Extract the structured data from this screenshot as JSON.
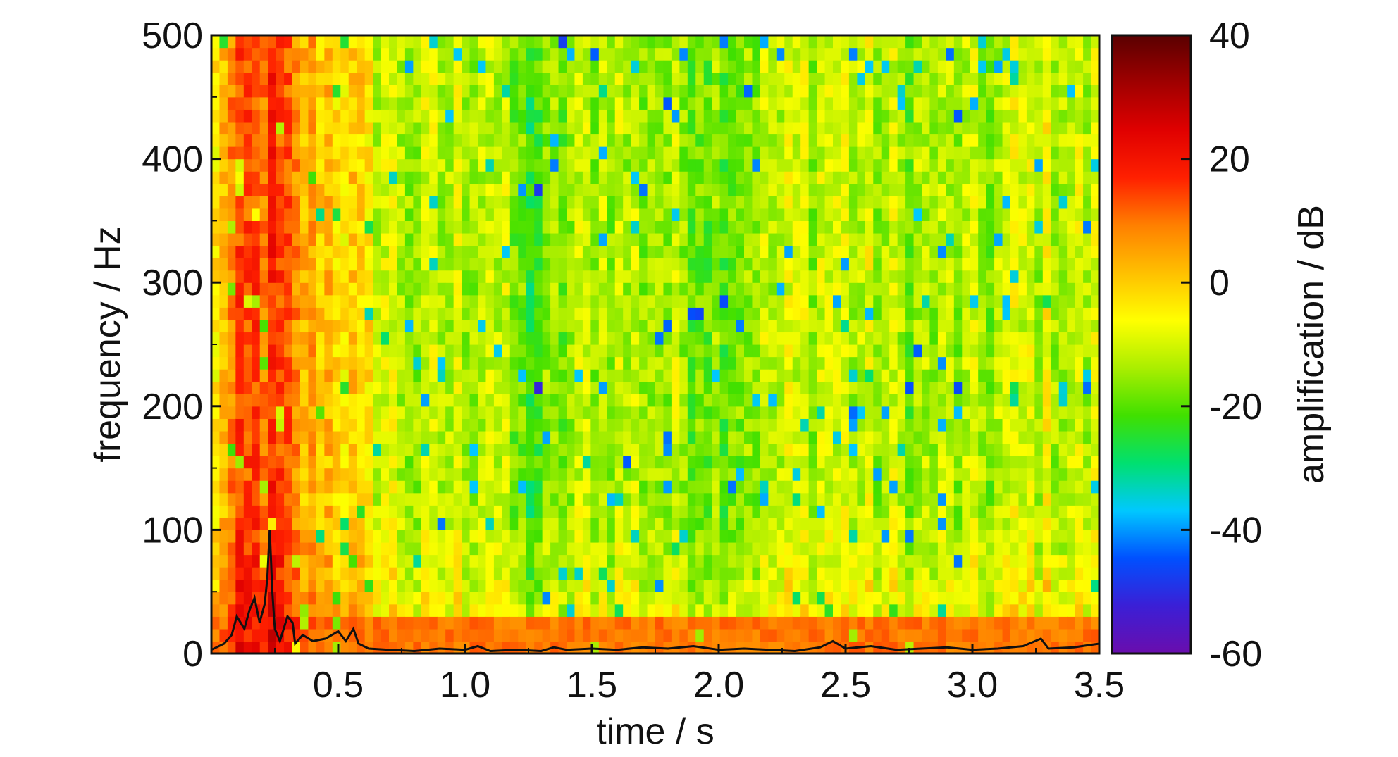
{
  "chart_data": {
    "type": "heatmap",
    "title": "",
    "xlabel": "time / s",
    "ylabel": "frequency / Hz",
    "colorbar_label": "amplification / dB",
    "xlim": [
      0,
      3.5
    ],
    "ylim": [
      0,
      500
    ],
    "zlim": [
      -60,
      40
    ],
    "x_ticks": [
      0.5,
      1.0,
      1.5,
      2.0,
      2.5,
      3.0,
      3.5
    ],
    "x_tick_labels": [
      "0.5",
      "1.0",
      "1.5",
      "2.0",
      "2.5",
      "3.0",
      "3.5"
    ],
    "y_ticks": [
      0,
      100,
      200,
      300,
      400,
      500
    ],
    "y_tick_labels": [
      "0",
      "100",
      "200",
      "300",
      "400",
      "500"
    ],
    "colorbar_ticks": [
      40,
      20,
      0,
      -20,
      -40,
      -60
    ],
    "colorbar_tick_labels": [
      "40",
      "20",
      "0",
      "-20",
      "-40",
      "-60"
    ],
    "colormap": [
      "#6a0dad",
      "#3b1fd6",
      "#0050ff",
      "#00c8ff",
      "#00e070",
      "#40e000",
      "#aaee00",
      "#ffff00",
      "#ffc000",
      "#ff8000",
      "#ff2000",
      "#e00000",
      "#a00000",
      "#5a0000"
    ],
    "grid": false,
    "background_level_db": -15,
    "band_profile": [
      {
        "t": 0.0,
        "db": -10
      },
      {
        "t": 0.05,
        "db": 5
      },
      {
        "t": 0.15,
        "db": 12
      },
      {
        "t": 0.25,
        "db": 14
      },
      {
        "t": 0.35,
        "db": 4
      },
      {
        "t": 0.45,
        "db": 2
      },
      {
        "t": 0.55,
        "db": -2
      },
      {
        "t": 0.65,
        "db": -8
      },
      {
        "t": 0.8,
        "db": -14
      },
      {
        "t": 1.0,
        "db": -12
      },
      {
        "t": 1.1,
        "db": -10
      },
      {
        "t": 1.25,
        "db": -22
      },
      {
        "t": 1.5,
        "db": -12
      },
      {
        "t": 2.0,
        "db": -16
      },
      {
        "t": 2.45,
        "db": -10
      },
      {
        "t": 2.7,
        "db": -14
      },
      {
        "t": 3.0,
        "db": -15
      },
      {
        "t": 3.25,
        "db": -10
      },
      {
        "t": 3.5,
        "db": -12
      }
    ],
    "low_frequency_band": {
      "f_max": 30,
      "db": 10
    },
    "overlay_series": {
      "name": "",
      "color": "#111111",
      "x": [
        0.0,
        0.05,
        0.08,
        0.1,
        0.13,
        0.15,
        0.17,
        0.19,
        0.21,
        0.22,
        0.23,
        0.24,
        0.25,
        0.27,
        0.3,
        0.32,
        0.33,
        0.36,
        0.4,
        0.45,
        0.5,
        0.53,
        0.56,
        0.58,
        0.62,
        0.7,
        0.8,
        0.9,
        1.0,
        1.05,
        1.1,
        1.2,
        1.3,
        1.35,
        1.4,
        1.5,
        1.6,
        1.7,
        1.8,
        1.9,
        2.0,
        2.1,
        2.2,
        2.3,
        2.4,
        2.45,
        2.5,
        2.6,
        2.7,
        2.8,
        2.9,
        3.0,
        3.1,
        3.2,
        3.27,
        3.3,
        3.4,
        3.5
      ],
      "y": [
        3,
        8,
        15,
        30,
        20,
        35,
        45,
        25,
        40,
        60,
        100,
        50,
        20,
        10,
        30,
        25,
        8,
        15,
        10,
        12,
        18,
        10,
        20,
        8,
        4,
        3,
        2,
        4,
        3,
        6,
        2,
        3,
        2,
        5,
        3,
        4,
        3,
        5,
        4,
        6,
        3,
        4,
        3,
        2,
        5,
        10,
        4,
        6,
        3,
        4,
        5,
        3,
        4,
        6,
        12,
        4,
        5,
        8
      ]
    }
  }
}
